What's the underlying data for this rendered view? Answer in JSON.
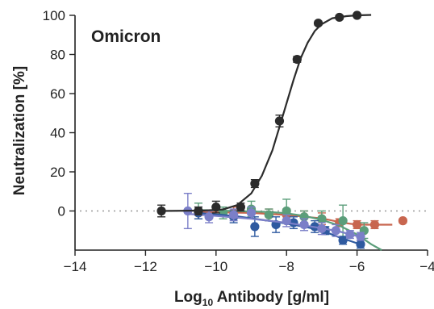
{
  "chart_data": {
    "type": "scatter",
    "annotation": "Omicron",
    "xlabel_main": "Log",
    "xlabel_sub": "10",
    "xlabel_rest": " Antibody [g/ml]",
    "ylabel": "Neutralization [%]",
    "xlim": [
      -14,
      -4
    ],
    "ylim": [
      -20,
      100
    ],
    "xticks": [
      -14,
      -12,
      -10,
      -8,
      -6,
      -4
    ],
    "yticks": [
      0,
      20,
      40,
      60,
      80,
      100
    ],
    "reference_line_y": 0,
    "grid": false,
    "legend": "none",
    "series": [
      {
        "color": "#2b2b2b",
        "x": [
          -11.55,
          -10.5,
          -10.0,
          -9.3,
          -8.9,
          -8.2,
          -7.7,
          -7.1,
          -6.5,
          -6.0
        ],
        "y": [
          0,
          0,
          2,
          2,
          14,
          46,
          77.5,
          96,
          99,
          100
        ],
        "err": [
          3,
          2,
          3,
          2,
          2,
          3,
          1.5,
          1,
          1,
          0.5
        ],
        "fit": [
          [
            -11.6,
            0
          ],
          [
            -10.4,
            0.2
          ],
          [
            -9.8,
            0.8
          ],
          [
            -9.4,
            3
          ],
          [
            -9.0,
            9
          ],
          [
            -8.7,
            18
          ],
          [
            -8.4,
            31
          ],
          [
            -8.2,
            43
          ],
          [
            -8.0,
            55
          ],
          [
            -7.8,
            67
          ],
          [
            -7.6,
            78
          ],
          [
            -7.4,
            86
          ],
          [
            -7.2,
            92
          ],
          [
            -7.0,
            95.5
          ],
          [
            -6.7,
            98.5
          ],
          [
            -6.3,
            99.6
          ],
          [
            -6.0,
            100
          ],
          [
            -5.6,
            100.2
          ]
        ]
      },
      {
        "color": "#c8664f",
        "x": [
          -10.5,
          -9.5,
          -8.5,
          -8.0,
          -7.5,
          -7.0,
          -6.5,
          -6.0,
          -5.5,
          -4.7
        ],
        "y": [
          -1,
          -1,
          -2,
          -2,
          -3,
          -4,
          -6,
          -7,
          -7,
          -5
        ],
        "err": [
          3,
          3,
          3,
          3,
          3,
          3,
          2,
          2,
          2,
          1
        ],
        "fit": [
          [
            -10.5,
            -0.5
          ],
          [
            -9.0,
            -1.0
          ],
          [
            -8.0,
            -2.0
          ],
          [
            -7.0,
            -3.8
          ],
          [
            -6.4,
            -6.0
          ],
          [
            -6.0,
            -7.0
          ],
          [
            -5.0,
            -7.0
          ]
        ]
      },
      {
        "color": "#5b9e7a",
        "x": [
          -10.5,
          -9.8,
          -9.0,
          -8.5,
          -8.0,
          -7.5,
          -7.0,
          -6.4,
          -5.8
        ],
        "y": [
          0,
          -1,
          1,
          -2,
          0,
          -3,
          -4,
          -5,
          -10
        ],
        "err": [
          4,
          3,
          4,
          3,
          6,
          3,
          4,
          8,
          4
        ],
        "fit": [
          [
            -10.5,
            0.5
          ],
          [
            -9.5,
            0
          ],
          [
            -8.5,
            -0.5
          ],
          [
            -8.0,
            -1.2
          ],
          [
            -7.5,
            -2.5
          ],
          [
            -7.0,
            -4.5
          ],
          [
            -6.5,
            -7.5
          ],
          [
            -6.0,
            -12
          ],
          [
            -5.6,
            -17
          ],
          [
            -5.3,
            -20
          ]
        ]
      },
      {
        "color": "#2f5aa0",
        "x": [
          -10.5,
          -9.5,
          -8.9,
          -8.3,
          -7.8,
          -7.2,
          -6.9,
          -6.4,
          -5.9
        ],
        "y": [
          -1,
          -3,
          -8,
          -7,
          -6,
          -8,
          -10,
          -15,
          -17
        ],
        "err": [
          3,
          3,
          5,
          4,
          3,
          3,
          2,
          2,
          2
        ],
        "fit": [
          [
            -10.5,
            -1
          ],
          [
            -9.5,
            -2.5
          ],
          [
            -8.5,
            -5
          ],
          [
            -7.5,
            -8
          ],
          [
            -7.0,
            -10
          ],
          [
            -6.5,
            -13.5
          ],
          [
            -6.0,
            -16.5
          ],
          [
            -5.8,
            -18
          ]
        ]
      },
      {
        "color": "#7b7fc8",
        "x": [
          -10.8,
          -10.2,
          -9.5,
          -9.0,
          -8.0,
          -7.5,
          -7.0,
          -6.6,
          -6.2,
          -5.9
        ],
        "y": [
          0,
          -3,
          -2,
          -1,
          -5,
          -7,
          -9,
          -10,
          -12,
          -13
        ],
        "err": [
          9,
          3,
          3,
          3,
          3,
          3,
          3,
          3,
          2,
          2
        ],
        "fit": [
          [
            -10.8,
            -1.5
          ],
          [
            -10.0,
            -2.5
          ],
          [
            -9.0,
            -4
          ],
          [
            -8.0,
            -6
          ],
          [
            -7.0,
            -8.8
          ],
          [
            -6.5,
            -10.5
          ],
          [
            -6.0,
            -12.8
          ]
        ]
      }
    ]
  }
}
